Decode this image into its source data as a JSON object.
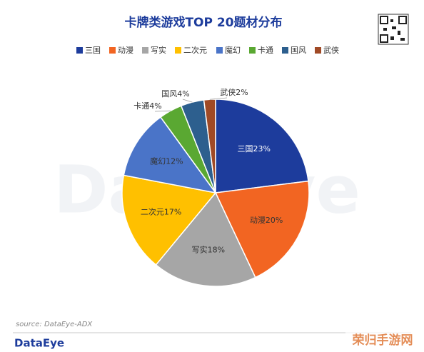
{
  "chart_data": {
    "type": "pie",
    "title": "卡牌类游戏TOP 20题材分布",
    "categories": [
      "三国",
      "动漫",
      "写实",
      "二次元",
      "魔幻",
      "卡通",
      "国风",
      "武侠"
    ],
    "values": [
      23,
      20,
      18,
      17,
      12,
      4,
      4,
      2
    ],
    "value_labels": [
      "三国23%",
      "动漫20%",
      "写实18%",
      "二次元17%",
      "魔幻12%",
      "卡通4%",
      "国风4%",
      "武侠2%"
    ],
    "colors": [
      "#1d3c9c",
      "#f26522",
      "#a6a6a6",
      "#ffc000",
      "#4a74c8",
      "#5aa832",
      "#2d5f8e",
      "#a04a26"
    ],
    "legend": "top",
    "source": "source:  DataEye-ADX",
    "brand": "DataEye",
    "watermark": "荣归手游网"
  }
}
